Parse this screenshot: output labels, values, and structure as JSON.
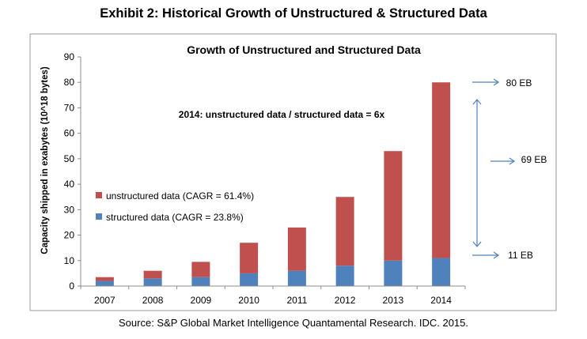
{
  "exhibit_title": "Exhibit 2: Historical Growth of Unstructured & Structured Data",
  "source": "Source: S&P Global Market Intelligence Quantamental Research. IDC. 2015.",
  "colors": {
    "unstructured": "#c0504d",
    "structured": "#4f81bd",
    "arrow": "#4f81bd"
  },
  "annotations": {
    "ratio": "2014: unstructured data / structured data = 6x",
    "total": "80 EB",
    "unstructured": "69 EB",
    "structured": "11 EB"
  },
  "chart_data": {
    "type": "bar",
    "stacked": true,
    "title": "Growth of Unstructured and Structured Data",
    "xlabel": "",
    "ylabel": "Capacity shipped in exabytes (10^18 bytes)",
    "ylim": [
      0,
      90
    ],
    "yticks": [
      0,
      10,
      20,
      30,
      40,
      50,
      60,
      70,
      80,
      90
    ],
    "grid": false,
    "legend_position": "left",
    "categories": [
      "2007",
      "2008",
      "2009",
      "2010",
      "2011",
      "2012",
      "2013",
      "2014"
    ],
    "series": [
      {
        "name": "structured data (CAGR = 23.8%)",
        "values": [
          2,
          3,
          3.5,
          5,
          6,
          8,
          10,
          11
        ]
      },
      {
        "name": "unstructured data (CAGR = 61.4%)",
        "values": [
          1.5,
          3,
          6,
          12,
          17,
          27,
          43,
          69
        ]
      }
    ]
  }
}
